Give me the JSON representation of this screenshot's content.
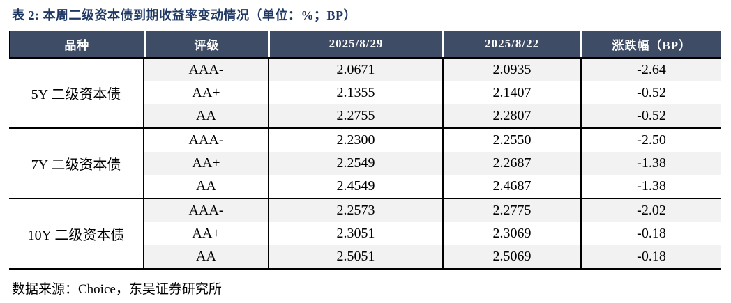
{
  "title": "表 2:  本周二级资本债到期收益率变动情况（单位：%；BP）",
  "source_note": "数据来源：Choice，东吴证券研究所",
  "colors": {
    "title_text": "#1f3864",
    "header_bg": "#3e4c66",
    "header_text": "#ffffff",
    "stripe_row": "#f2f2f2",
    "body_text": "#000000"
  },
  "table": {
    "columns": [
      "品种",
      "评级",
      "2025/8/29",
      "2025/8/22",
      "涨跌幅（BP）"
    ],
    "groups": [
      {
        "name": "5Y 二级资本债",
        "rows": [
          [
            "AAA-",
            "2.0671",
            "2.0935",
            "-2.64"
          ],
          [
            "AA+",
            "2.1355",
            "2.1407",
            "-0.52"
          ],
          [
            "AA",
            "2.2755",
            "2.2807",
            "-0.52"
          ]
        ]
      },
      {
        "name": "7Y 二级资本债",
        "rows": [
          [
            "AAA-",
            "2.2300",
            "2.2550",
            "-2.50"
          ],
          [
            "AA+",
            "2.2549",
            "2.2687",
            "-1.38"
          ],
          [
            "AA",
            "2.4549",
            "2.4687",
            "-1.38"
          ]
        ]
      },
      {
        "name": "10Y 二级资本债",
        "rows": [
          [
            "AAA-",
            "2.2573",
            "2.2775",
            "-2.02"
          ],
          [
            "AA+",
            "2.3051",
            "2.3069",
            "-0.18"
          ],
          [
            "AA",
            "2.5051",
            "2.5069",
            "-0.18"
          ]
        ]
      }
    ]
  }
}
